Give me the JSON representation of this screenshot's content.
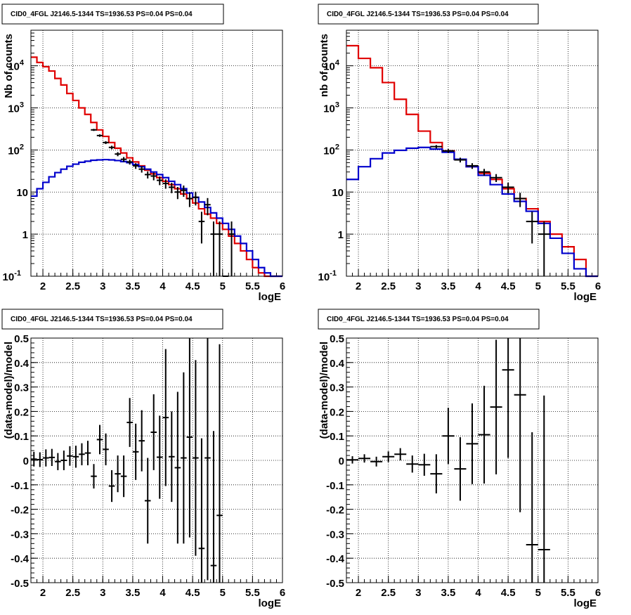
{
  "colors": {
    "data": "#000000",
    "total_model": "#e00000",
    "source_model": "#0000cc"
  },
  "chart_data": [
    {
      "type": "line",
      "title": "CID0_4FGL J2146.5-1344 TS=1936.53 PS=0.04 PS=0.04",
      "xlabel": "logE",
      "ylabel": "Nb of counts",
      "xlim": [
        1.8,
        6.0
      ],
      "ylim": [
        0.1,
        70000
      ],
      "yscale": "log",
      "grid": true,
      "x_ticks": [
        "2",
        "2.5",
        "3",
        "3.5",
        "4",
        "4.5",
        "5",
        "5.5",
        "6"
      ],
      "y_ticks": [
        "10^-1",
        "1",
        "10",
        "10^2",
        "10^3",
        "10^4"
      ],
      "bin_edges": [
        1.8,
        1.9,
        2.0,
        2.1,
        2.2,
        2.3,
        2.4,
        2.5,
        2.6,
        2.7,
        2.8,
        2.9,
        3.0,
        3.1,
        3.2,
        3.3,
        3.4,
        3.5,
        3.6,
        3.7,
        3.8,
        3.9,
        4.0,
        4.1,
        4.2,
        4.3,
        4.4,
        4.5,
        4.6,
        4.7,
        4.8,
        4.9,
        5.0,
        5.1,
        5.2,
        5.3,
        5.4,
        5.5,
        5.6,
        5.7,
        5.8,
        5.9,
        6.0
      ],
      "series": [
        {
          "name": "",
          "style": "step",
          "values": [
            16000,
            12000,
            9500,
            7500,
            5000,
            3500,
            2200,
            1500,
            1000,
            700,
            450,
            300,
            210,
            150,
            110,
            85,
            65,
            52,
            42,
            33,
            27,
            22,
            18,
            15,
            12,
            9,
            7,
            5.5,
            4,
            3,
            2.4,
            1.8,
            1.3,
            0.9,
            0.6,
            0.4,
            0.25,
            0.16,
            0.12,
            0.1,
            0.1,
            0.1
          ]
        },
        {
          "name": "",
          "style": "step",
          "values": [
            8,
            12,
            17,
            23,
            29,
            35,
            41,
            46,
            51,
            54,
            57,
            58,
            59,
            58,
            56,
            53,
            50,
            45,
            40,
            35,
            30,
            26,
            22,
            18,
            15,
            12,
            9.5,
            7.5,
            5.8,
            4.3,
            3.2,
            2.4,
            1.8,
            1.3,
            0.9,
            0.6,
            0.4,
            0.25,
            0.16,
            0.12,
            0.1,
            0.1
          ]
        },
        {
          "name": "",
          "style": "errorbars",
          "x": [
            2.85,
            2.95,
            3.05,
            3.15,
            3.25,
            3.35,
            3.45,
            3.55,
            3.65,
            3.75,
            3.85,
            3.95,
            4.05,
            4.15,
            4.25,
            4.35,
            4.45,
            4.55,
            4.65,
            4.75,
            4.85,
            4.95,
            5.05,
            5.15
          ],
          "y": [
            300,
            220,
            150,
            115,
            80,
            60,
            52,
            42,
            35,
            26,
            24,
            19,
            16,
            13,
            10,
            11,
            7,
            7.5,
            2,
            5,
            1,
            1,
            0.1,
            1
          ],
          "yerr_low": [
            17,
            15,
            12,
            11,
            9,
            8,
            7,
            6.5,
            6,
            5,
            5,
            4.4,
            4,
            3.6,
            3.2,
            3.3,
            2.6,
            2.7,
            1.4,
            2.2,
            0.9,
            0.9,
            0,
            0.9
          ],
          "yerr_high": [
            17,
            15,
            12,
            11,
            9,
            8,
            7,
            6.5,
            6,
            5,
            5,
            4.4,
            4,
            3.6,
            3.2,
            3.3,
            2.6,
            2.7,
            1.4,
            2.2,
            1,
            1,
            0,
            1
          ]
        }
      ]
    },
    {
      "type": "line",
      "title": "CID0_4FGL J2146.5-1344 TS=1936.53 PS=0.04 PS=0.04",
      "xlabel": "logE",
      "ylabel": "nb of counts",
      "xlim": [
        1.8,
        6.0
      ],
      "ylim": [
        0.1,
        70000
      ],
      "yscale": "log",
      "grid": true,
      "x_ticks": [
        "2",
        "2.5",
        "3",
        "3.5",
        "4",
        "4.5",
        "5",
        "5.5",
        "6"
      ],
      "y_ticks": [
        "10^-1",
        "1",
        "10",
        "10^2",
        "10^3",
        "10^4"
      ],
      "bin_edges": [
        1.8,
        2.0,
        2.2,
        2.4,
        2.6,
        2.8,
        3.0,
        3.2,
        3.4,
        3.6,
        3.8,
        4.0,
        4.2,
        4.4,
        4.6,
        4.8,
        5.0,
        5.2,
        5.4,
        5.6,
        5.8,
        6.0
      ],
      "series": [
        {
          "name": "",
          "style": "step",
          "values": [
            30000,
            15000,
            9000,
            4000,
            1600,
            700,
            280,
            150,
            95,
            60,
            40,
            28,
            20,
            12,
            7,
            4,
            2,
            1,
            0.5,
            0.25,
            0.1
          ]
        },
        {
          "name": "",
          "style": "step",
          "values": [
            20,
            40,
            62,
            85,
            98,
            110,
            115,
            105,
            88,
            60,
            40,
            25,
            15,
            9,
            6,
            3.5,
            1.8,
            0.8,
            0.35,
            0.15,
            0.1
          ]
        },
        {
          "name": "",
          "style": "errorbars",
          "x": [
            3.3,
            3.5,
            3.7,
            3.9,
            4.1,
            4.3,
            4.5,
            4.7,
            4.9,
            5.1
          ],
          "y": [
            120,
            95,
            58,
            42,
            30,
            22,
            13,
            7,
            2,
            1
          ],
          "yerr_low": [
            11,
            10,
            7.5,
            6.5,
            5.5,
            4.7,
            3.6,
            2.6,
            1.4,
            0.9
          ],
          "yerr_high": [
            11,
            10,
            7.5,
            6.5,
            5.5,
            4.7,
            3.6,
            2.6,
            1.4,
            1
          ]
        }
      ]
    },
    {
      "type": "scatter",
      "title": "CID0_4FGL J2146.5-1344 TS=1936.53 PS=0.04 PS=0.04",
      "xlabel": "logE",
      "ylabel": "(data-model)/model",
      "xlim": [
        1.8,
        6.0
      ],
      "ylim": [
        -0.5,
        0.5
      ],
      "grid": true,
      "x_ticks": [
        "2",
        "2.5",
        "3",
        "3.5",
        "4",
        "4.5",
        "5",
        "5.5",
        "6"
      ],
      "y_ticks": [
        "-0.5",
        "-0.4",
        "-0.3",
        "-0.2",
        "-0.1",
        "0",
        "0.1",
        "0.2",
        "0.3",
        "0.4",
        "0.5"
      ],
      "series": [
        {
          "name": "",
          "style": "errorbars",
          "xerr": 0.05,
          "x": [
            1.85,
            1.95,
            2.05,
            2.15,
            2.25,
            2.35,
            2.45,
            2.55,
            2.65,
            2.75,
            2.85,
            2.95,
            3.05,
            3.15,
            3.25,
            3.35,
            3.45,
            3.55,
            3.65,
            3.75,
            3.85,
            3.95,
            4.05,
            4.15,
            4.25,
            4.35,
            4.45,
            4.55,
            4.65,
            4.75,
            4.85,
            4.95
          ],
          "y": [
            0.005,
            0.003,
            0.01,
            0.012,
            -0.005,
            0.0,
            0.018,
            0.015,
            0.025,
            0.03,
            -0.065,
            0.085,
            0.045,
            -0.105,
            -0.055,
            -0.065,
            0.155,
            0.035,
            0.08,
            -0.165,
            0.115,
            0.013,
            0.175,
            0.015,
            -0.03,
            0.01,
            0.095,
            0.01,
            -0.36,
            0.01,
            -0.43,
            -0.225
          ],
          "yerr": [
            0.03,
            0.03,
            0.035,
            0.035,
            0.035,
            0.04,
            0.04,
            0.045,
            0.045,
            0.05,
            0.05,
            0.06,
            0.065,
            0.065,
            0.075,
            0.085,
            0.1,
            0.115,
            0.125,
            0.175,
            0.155,
            0.17,
            0.28,
            0.185,
            0.31,
            0.35,
            0.41,
            0.4,
            0.45,
            0.5,
            0.55,
            0.7
          ]
        }
      ]
    },
    {
      "type": "scatter",
      "title": "CID0_4FGL J2146.5-1344 TS=1936.53 PS=0.04 PS=0.04",
      "xlabel": "logE",
      "ylabel": "(data-model)/model",
      "xlim": [
        1.8,
        6.0
      ],
      "ylim": [
        -0.5,
        0.5
      ],
      "grid": true,
      "x_ticks": [
        "2",
        "2.5",
        "3",
        "3.5",
        "4",
        "4.5",
        "5",
        "5.5",
        "6"
      ],
      "y_ticks": [
        "-0.5",
        "-0.4",
        "-0.3",
        "-0.2",
        "-0.1",
        "0",
        "0.1",
        "0.2",
        "0.3",
        "0.4",
        "0.5"
      ],
      "series": [
        {
          "name": "",
          "style": "errorbars",
          "xerr": 0.1,
          "x": [
            1.9,
            2.1,
            2.3,
            2.5,
            2.7,
            2.9,
            3.1,
            3.3,
            3.5,
            3.7,
            3.9,
            4.1,
            4.3,
            4.5,
            4.7,
            4.9,
            5.1
          ],
          "y": [
            0.002,
            0.008,
            -0.005,
            0.015,
            0.025,
            -0.015,
            -0.018,
            -0.055,
            0.1,
            -0.035,
            0.068,
            0.105,
            0.218,
            0.37,
            0.268,
            -0.345,
            -0.365
          ],
          "yerr": [
            0.015,
            0.017,
            0.02,
            0.022,
            0.025,
            0.035,
            0.045,
            0.08,
            0.115,
            0.13,
            0.165,
            0.2,
            0.275,
            0.36,
            0.48,
            0.46,
            0.63
          ]
        }
      ]
    }
  ]
}
